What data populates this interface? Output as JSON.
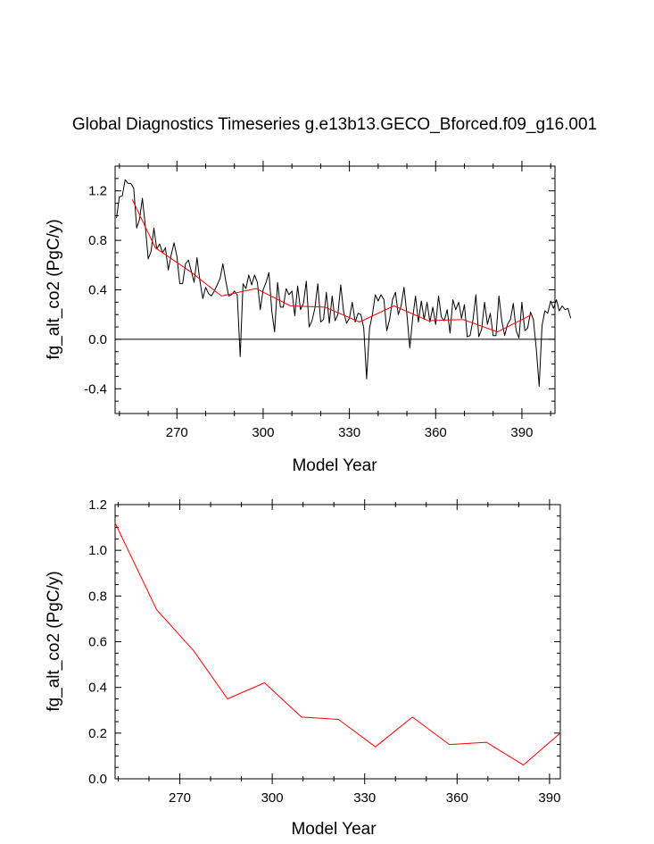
{
  "chart_data": [
    {
      "type": "line",
      "title": "Global Diagnostics Timeseries g.e13b13.GECO_Bforced.f09_g16.001",
      "xlabel": "Model Year",
      "ylabel": "fg_alt_co2 (PgC/y)",
      "xlim": [
        248.5,
        401.5
      ],
      "ylim": [
        -0.6,
        1.4
      ],
      "xticks": [
        270,
        300,
        330,
        360,
        390
      ],
      "yticks": [
        -0.4,
        0.0,
        0.4,
        0.8,
        1.2
      ],
      "xtick_labels": [
        "270",
        "300",
        "330",
        "360",
        "390"
      ],
      "ytick_labels": [
        "-0.4",
        "0.0",
        "0.4",
        "0.8",
        "1.2"
      ],
      "zero_line": 0.0,
      "series": [
        {
          "color": "#000000",
          "x_start": 249,
          "x_step": 1,
          "values": [
            0.98,
            1.15,
            1.16,
            1.29,
            1.26,
            1.26,
            1.22,
            0.9,
            0.97,
            1.14,
            0.92,
            0.65,
            0.71,
            0.9,
            0.73,
            0.77,
            0.7,
            0.74,
            0.56,
            0.68,
            0.78,
            0.67,
            0.45,
            0.45,
            0.61,
            0.64,
            0.55,
            0.46,
            0.66,
            0.47,
            0.33,
            0.42,
            0.37,
            0.35,
            0.39,
            0.44,
            0.49,
            0.61,
            0.47,
            0.35,
            0.36,
            0.39,
            0.36,
            -0.14,
            0.45,
            0.41,
            0.52,
            0.44,
            0.52,
            0.46,
            0.24,
            0.4,
            0.46,
            0.54,
            0.23,
            0.06,
            0.46,
            0.26,
            0.26,
            0.41,
            0.36,
            0.39,
            0.19,
            0.43,
            0.24,
            0.29,
            0.47,
            0.1,
            0.15,
            0.25,
            0.45,
            0.14,
            0.16,
            0.38,
            0.13,
            0.35,
            0.15,
            0.2,
            0.44,
            0.22,
            0.13,
            0.17,
            0.3,
            0.14,
            0.21,
            0.2,
            0.09,
            -0.32,
            0.09,
            0.2,
            0.36,
            0.31,
            0.36,
            0.32,
            0.07,
            0.16,
            0.32,
            0.38,
            0.2,
            0.27,
            0.42,
            0.2,
            -0.07,
            0.17,
            0.35,
            0.14,
            0.31,
            0.16,
            0.3,
            0.14,
            0.26,
            0.12,
            0.35,
            0.18,
            0.15,
            0.24,
            0.05,
            0.32,
            0.24,
            0.3,
            0.17,
            0.28,
            0.02,
            0.03,
            0.16,
            0.36,
            0.02,
            0.08,
            0.3,
            0.12,
            0.21,
            0.03,
            0.03,
            0.35,
            0.15,
            0.03,
            0.12,
            0.16,
            0.29,
            0.07,
            0.01,
            0.3,
            0.07,
            0.09,
            0.22,
            0.16,
            -0.08,
            -0.38,
            0.11,
            0.23,
            0.21,
            0.31,
            0.25,
            0.32,
            0.23,
            0.27,
            0.24,
            0.25,
            0.17
          ]
        },
        {
          "color": "#ff0000",
          "x": [
            254.5,
            262.5,
            274.5,
            285.5,
            297.5,
            309.5,
            321.5,
            333.5,
            345.5,
            357.5,
            369.5,
            381.5,
            393.5
          ],
          "values": [
            1.13,
            0.74,
            0.55,
            0.35,
            0.41,
            0.27,
            0.26,
            0.14,
            0.27,
            0.15,
            0.16,
            0.06,
            0.2
          ]
        }
      ]
    },
    {
      "type": "line",
      "xlabel": "Model Year",
      "ylabel": "fg_alt_co2 (PgC/y)",
      "xlim": [
        249.0,
        393.5
      ],
      "ylim": [
        0.0,
        1.2
      ],
      "xticks": [
        270,
        300,
        330,
        360,
        390
      ],
      "yticks": [
        0.0,
        0.2,
        0.4,
        0.6,
        0.8,
        1.0,
        1.2
      ],
      "xtick_labels": [
        "270",
        "300",
        "330",
        "360",
        "390"
      ],
      "ytick_labels": [
        "0.0",
        "0.2",
        "0.4",
        "0.6",
        "0.8",
        "1.0",
        "1.2"
      ],
      "series": [
        {
          "color": "#ff0000",
          "x": [
            249.0,
            262.5,
            274.5,
            285.5,
            297.5,
            309.5,
            321.5,
            333.5,
            345.5,
            357.5,
            369.5,
            381.5,
            393.5
          ],
          "values": [
            1.12,
            0.74,
            0.56,
            0.35,
            0.42,
            0.27,
            0.26,
            0.14,
            0.27,
            0.15,
            0.16,
            0.06,
            0.2
          ]
        }
      ]
    }
  ]
}
